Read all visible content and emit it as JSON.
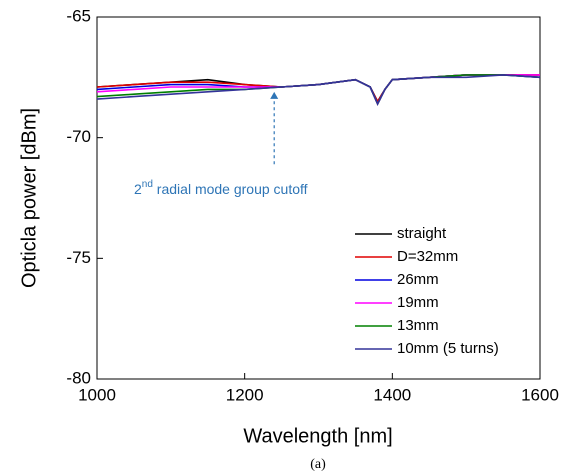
{
  "chart_data": {
    "type": "line",
    "xlabel": "Wavelength [nm]",
    "ylabel": "Opticla power [dBm]",
    "caption": "(a)",
    "annotation": {
      "text": "2",
      "sup": "nd",
      "rest": " radial mode group cutoff",
      "color": "#2e75b6",
      "x": 1240,
      "y_from": -71.1,
      "y_to": -68.1
    },
    "x": [
      1000,
      1050,
      1100,
      1150,
      1200,
      1250,
      1300,
      1350,
      1370,
      1380,
      1390,
      1400,
      1450,
      1500,
      1550,
      1600
    ],
    "series": [
      {
        "name": "straight",
        "color": "#000000",
        "values": [
          -67.9,
          -67.8,
          -67.7,
          -67.6,
          -67.8,
          -67.9,
          -67.8,
          -67.6,
          -67.9,
          -68.5,
          -68.0,
          -67.6,
          -67.5,
          -67.4,
          -67.4,
          -67.4
        ]
      },
      {
        "name": "D=32mm",
        "color": "#e00000",
        "values": [
          -67.9,
          -67.8,
          -67.7,
          -67.7,
          -67.8,
          -67.9,
          -67.8,
          -67.6,
          -67.9,
          -68.5,
          -68.0,
          -67.6,
          -67.5,
          -67.4,
          -67.4,
          -67.4
        ]
      },
      {
        "name": "26mm",
        "color": "#0000e0",
        "values": [
          -68.0,
          -67.9,
          -67.8,
          -67.8,
          -67.9,
          -67.9,
          -67.8,
          -67.6,
          -67.9,
          -68.6,
          -68.0,
          -67.6,
          -67.5,
          -67.4,
          -67.4,
          -67.5
        ]
      },
      {
        "name": "19mm",
        "color": "#ff00ff",
        "values": [
          -68.1,
          -68.0,
          -67.9,
          -67.9,
          -67.9,
          -67.9,
          -67.8,
          -67.6,
          -67.9,
          -68.6,
          -68.0,
          -67.6,
          -67.5,
          -67.4,
          -67.4,
          -67.4
        ]
      },
      {
        "name": "13mm",
        "color": "#008000",
        "values": [
          -68.3,
          -68.2,
          -68.1,
          -68.0,
          -68.0,
          -67.9,
          -67.8,
          -67.6,
          -67.9,
          -68.6,
          -68.0,
          -67.6,
          -67.5,
          -67.4,
          -67.4,
          -67.5
        ]
      },
      {
        "name": "10mm (5 turns)",
        "color": "#333399",
        "values": [
          -68.4,
          -68.3,
          -68.2,
          -68.1,
          -68.0,
          -67.9,
          -67.8,
          -67.6,
          -67.9,
          -68.6,
          -68.0,
          -67.6,
          -67.5,
          -67.5,
          -67.4,
          -67.5
        ]
      }
    ],
    "xlim": [
      1000,
      1600
    ],
    "ylim": [
      -80,
      -65
    ],
    "xticks": [
      1000,
      1200,
      1400,
      1600
    ],
    "yticks": [
      -80,
      -75,
      -70,
      -65
    ],
    "grid": false,
    "legend": "lower right"
  }
}
